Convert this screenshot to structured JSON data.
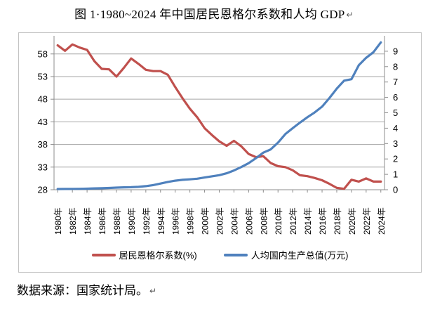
{
  "title": {
    "text": "图 1·1980~2024 年中国居民恩格尔系数和人均 GDP",
    "paragraph_mark": "↵"
  },
  "caption": {
    "text": "数据来源：国家统计局。",
    "paragraph_mark": "↵"
  },
  "colors": {
    "engel_line": "#C0504D",
    "gdp_line": "#4F81BD",
    "gridline": "#a6a6a6",
    "axis": "#8c8c8c",
    "frame": "#c3c3c3",
    "text": "#000000"
  },
  "chart_data": {
    "type": "line",
    "title": "图 1 1980~2024 年中国居民恩格尔系数和人均 GDP",
    "x": [
      1980,
      1981,
      1982,
      1983,
      1984,
      1985,
      1986,
      1987,
      1988,
      1989,
      1990,
      1991,
      1992,
      1993,
      1994,
      1995,
      1996,
      1997,
      1998,
      1999,
      2000,
      2001,
      2002,
      2003,
      2004,
      2005,
      2006,
      2007,
      2008,
      2009,
      2010,
      2011,
      2012,
      2013,
      2014,
      2015,
      2016,
      2017,
      2018,
      2019,
      2020,
      2021,
      2022,
      2023,
      2024
    ],
    "x_tick_labels": [
      "1980年",
      "1982年",
      "1984年",
      "1986年",
      "1988年",
      "1990年",
      "1992年",
      "1994年",
      "1996年",
      "1998年",
      "2000年",
      "2002年",
      "2004年",
      "2006年",
      "2008年",
      "2010年",
      "2012年",
      "2014年",
      "2016年",
      "2018年",
      "2020年",
      "2022年",
      "2024年"
    ],
    "series": [
      {
        "key": "engel",
        "name": "居民恩格尔系数(%)",
        "axis": "left",
        "color": "#C0504D",
        "values": [
          59.9,
          58.7,
          60.1,
          59.4,
          58.9,
          56.4,
          54.7,
          54.6,
          53.0,
          54.9,
          57.0,
          55.8,
          54.5,
          54.2,
          54.2,
          53.4,
          50.7,
          48.2,
          45.9,
          44.0,
          41.6,
          40.1,
          38.7,
          37.7,
          38.8,
          37.6,
          35.9,
          35.2,
          35.4,
          33.9,
          33.2,
          33.0,
          32.3,
          31.2,
          31.0,
          30.6,
          30.1,
          29.3,
          28.4,
          28.2,
          30.2,
          29.8,
          30.5,
          29.8,
          29.8
        ]
      },
      {
        "key": "gdp",
        "name": "人均国内生产总值(万元)",
        "axis": "right",
        "color": "#4F81BD",
        "values": [
          0.047,
          0.049,
          0.053,
          0.058,
          0.07,
          0.086,
          0.096,
          0.112,
          0.137,
          0.155,
          0.166,
          0.189,
          0.232,
          0.3,
          0.402,
          0.509,
          0.588,
          0.644,
          0.678,
          0.717,
          0.794,
          0.871,
          0.947,
          1.067,
          1.251,
          1.473,
          1.728,
          2.051,
          2.412,
          2.622,
          3.06,
          3.617,
          4.0,
          4.366,
          4.712,
          5.028,
          5.398,
          5.958,
          6.57,
          7.089,
          7.181,
          8.098,
          8.57,
          8.942,
          9.575
        ]
      }
    ],
    "left_axis": {
      "ticks": [
        28,
        33,
        38,
        43,
        48,
        53,
        58
      ],
      "min": 28,
      "max": 62
    },
    "right_axis": {
      "ticks": [
        0,
        1,
        2,
        3,
        4,
        5,
        6,
        7,
        8,
        9
      ],
      "min": 0,
      "max": 10
    },
    "grid": true,
    "legend_position": "bottom"
  }
}
